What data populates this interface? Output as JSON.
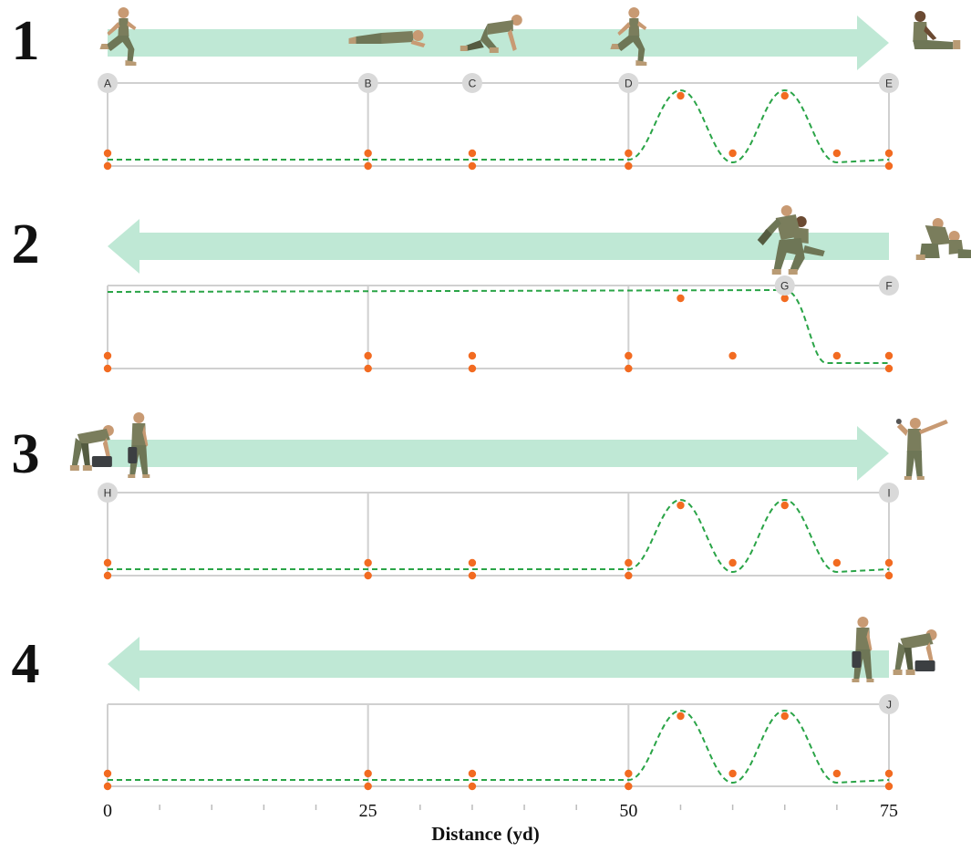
{
  "figure": {
    "x_axis": {
      "title": "Distance (yd)",
      "ticks": [
        0,
        25,
        50,
        75
      ],
      "minor_ticks": [
        5,
        10,
        15,
        20,
        30,
        35,
        40,
        45,
        55,
        60,
        65,
        70
      ],
      "range": [
        0,
        75
      ]
    },
    "colors": {
      "arrow": "#bfe8d5",
      "curve": "#2aa447",
      "markers": "#f26b21",
      "gridline": "#d0d0d0",
      "node": "#d9d9d9",
      "label": "#111111"
    },
    "panels": [
      {
        "number": "1",
        "arrow_direction": "right",
        "nodes": [
          {
            "label": "A",
            "x": 0
          },
          {
            "label": "B",
            "x": 25
          },
          {
            "label": "C",
            "x": 35
          },
          {
            "label": "D",
            "x": 50
          },
          {
            "label": "E",
            "x": 75
          }
        ],
        "gridlines_x": [
          0,
          25,
          50,
          75
        ],
        "curve": "zigzag",
        "figures": [
          {
            "icon": "sprinting-soldier-icon",
            "x": 1
          },
          {
            "icon": "crawling-soldier-icon",
            "x": 27
          },
          {
            "icon": "crouching-soldier-icon",
            "x": 37
          },
          {
            "icon": "sprinting-soldier-icon",
            "x": 50
          },
          {
            "icon": "seated-soldier-icon",
            "x": 78
          }
        ]
      },
      {
        "number": "2",
        "arrow_direction": "left",
        "nodes": [
          {
            "label": "G",
            "x": 65
          },
          {
            "label": "F",
            "x": 75
          }
        ],
        "gridlines_x": [
          0,
          25,
          50
        ],
        "curve": "drag",
        "figures": [
          {
            "icon": "fireman-carry-icon",
            "x": 65
          },
          {
            "icon": "casualty-drag-icon",
            "x": 79
          }
        ]
      },
      {
        "number": "3",
        "arrow_direction": "right",
        "nodes": [
          {
            "label": "H",
            "x": 0
          },
          {
            "label": "I",
            "x": 75
          }
        ],
        "gridlines_x": [
          0,
          25,
          50,
          75
        ],
        "curve": "zigzag",
        "figures": [
          {
            "icon": "ammo-can-lift-icon",
            "x": -1.5
          },
          {
            "icon": "ammo-can-carry-icon",
            "x": 3
          },
          {
            "icon": "grenade-throw-icon",
            "x": 77
          }
        ]
      },
      {
        "number": "4",
        "arrow_direction": "left",
        "nodes": [
          {
            "label": "J",
            "x": 75
          }
        ],
        "gridlines_x": [
          0,
          25,
          50,
          75
        ],
        "curve": "zigzag",
        "figures": [
          {
            "icon": "ammo-can-carry-icon",
            "x": 72.5
          },
          {
            "icon": "ammo-can-lift-icon",
            "x": 77.5
          }
        ]
      }
    ]
  }
}
